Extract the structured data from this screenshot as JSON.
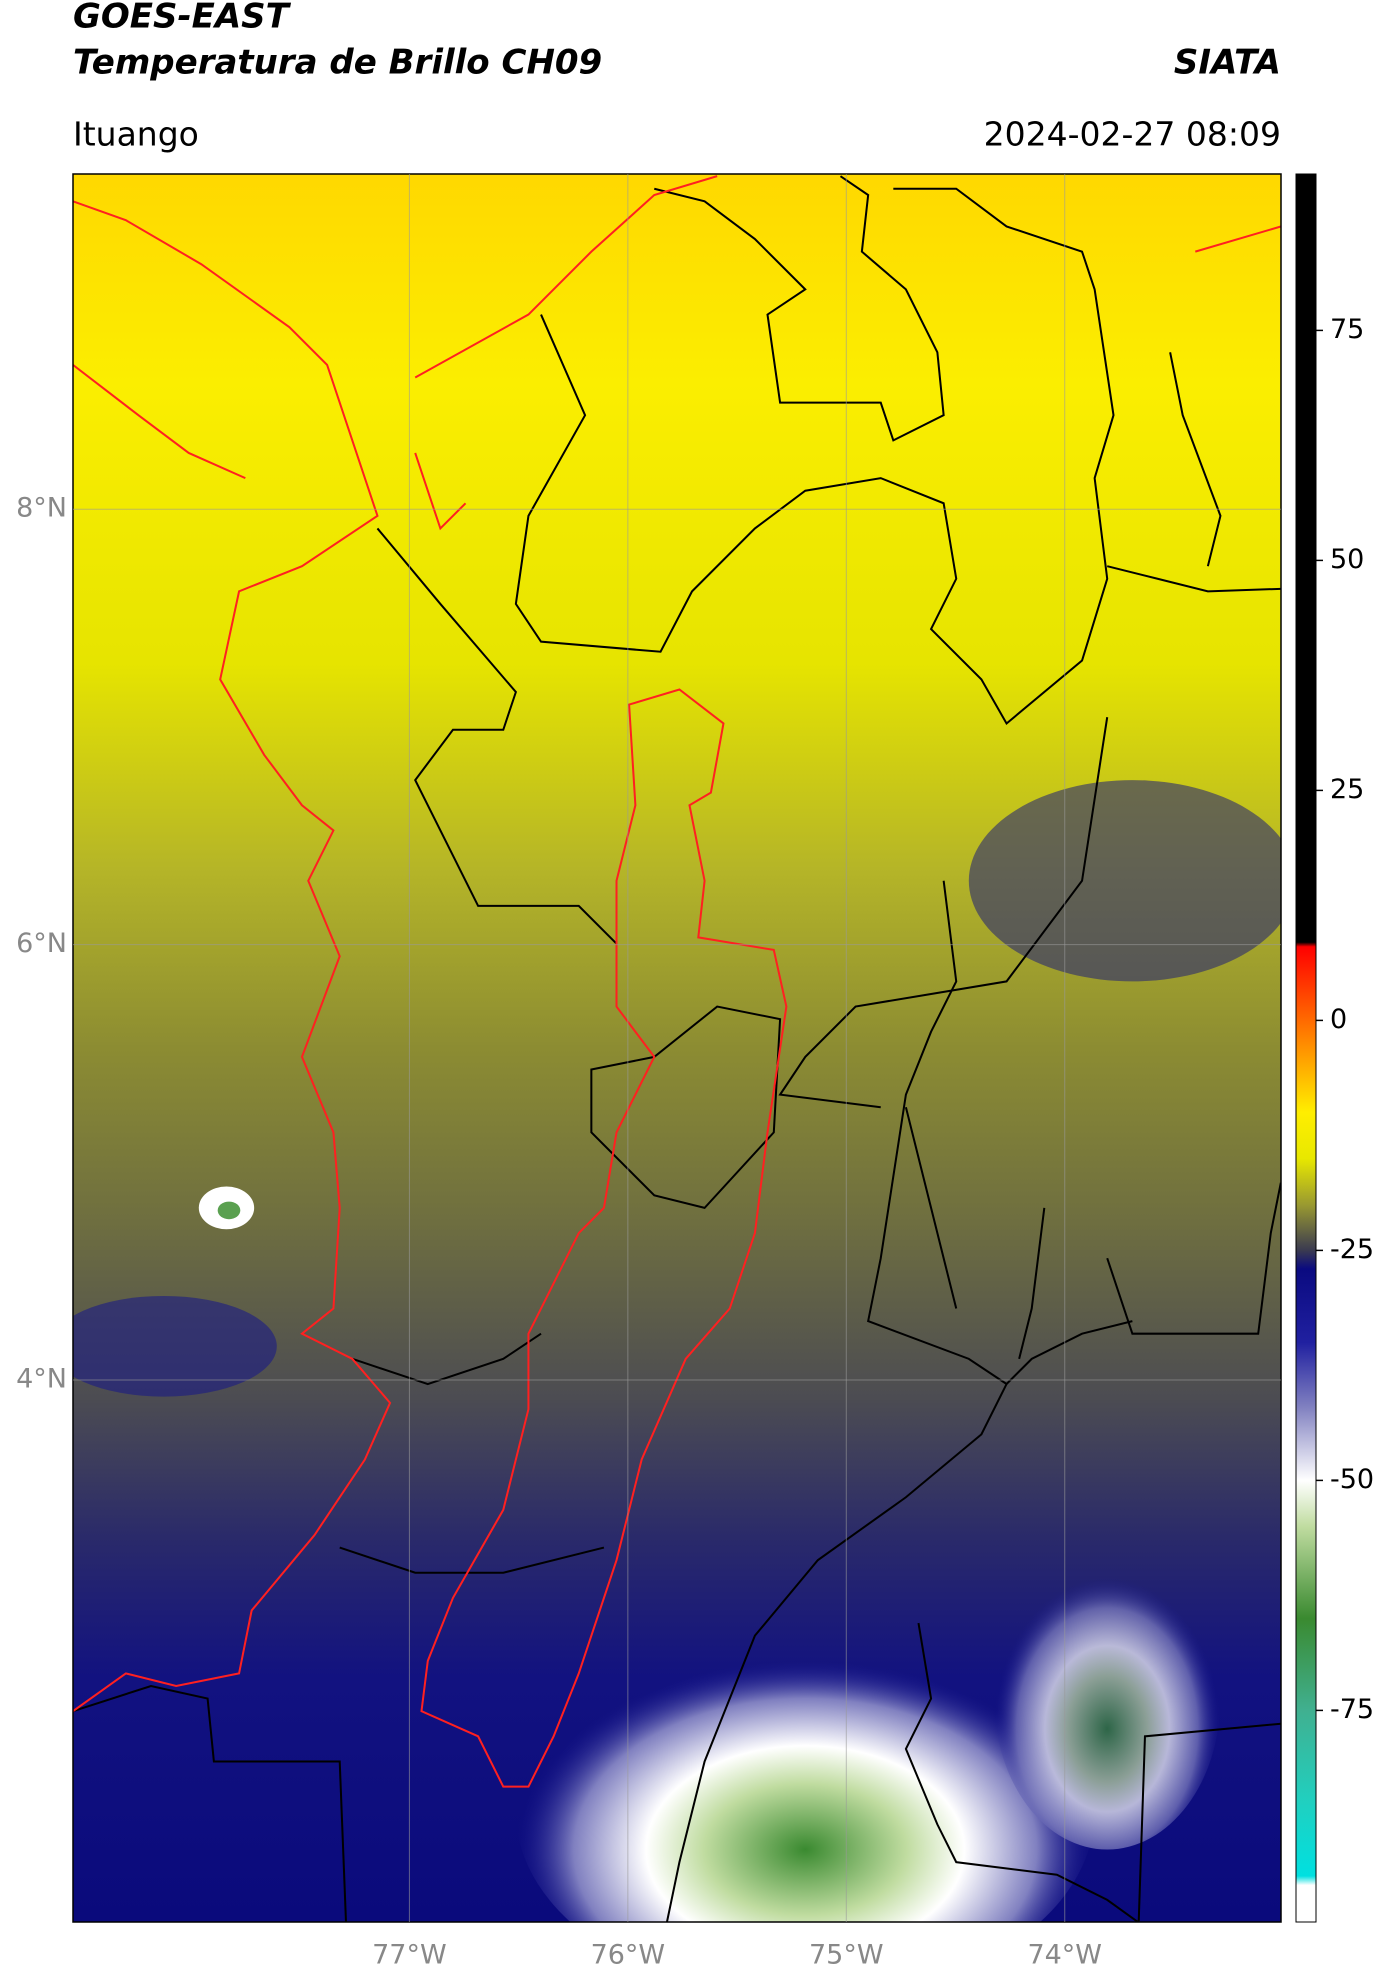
{
  "chart_data": {
    "type": "map",
    "title": "GOES-EAST",
    "subtitle": "Temperatura de Brillo CH09",
    "agency": "SIATA",
    "location": "Ituango",
    "datetime": "2024-02-27 08:09",
    "xlim": [
      -78.54,
      -73.01
    ],
    "ylim": [
      1.51,
      9.54
    ],
    "xticks": [
      {
        "value": -77,
        "label": "77°W"
      },
      {
        "value": -76,
        "label": "76°W"
      },
      {
        "value": -75,
        "label": "75°W"
      },
      {
        "value": -74,
        "label": "74°W"
      }
    ],
    "yticks": [
      {
        "value": 8,
        "label": "8°N"
      },
      {
        "value": 6,
        "label": "6°N"
      },
      {
        "value": 4,
        "label": "4°N"
      }
    ],
    "grid": true,
    "colorbar": {
      "lim": [
        -98,
        92
      ],
      "ticks": [
        75,
        50,
        25,
        0,
        -25,
        -50,
        -75
      ],
      "colormap": [
        {
          "value": 92,
          "color": "#000000"
        },
        {
          "value": 8.5,
          "color": "#000000"
        },
        {
          "value": 8,
          "color": "#ff0000"
        },
        {
          "value": 0,
          "color": "#ff6a00"
        },
        {
          "value": -10,
          "color": "#ffee00"
        },
        {
          "value": -15,
          "color": "#e8e800"
        },
        {
          "value": -20,
          "color": "#9a9a30"
        },
        {
          "value": -25,
          "color": "#3a3a50"
        },
        {
          "value": -27,
          "color": "#0a0a80"
        },
        {
          "value": -35,
          "color": "#2020a0"
        },
        {
          "value": -42,
          "color": "#8080c0"
        },
        {
          "value": -50,
          "color": "#ffffff"
        },
        {
          "value": -55,
          "color": "#c0dca0"
        },
        {
          "value": -65,
          "color": "#3a8a30"
        },
        {
          "value": -75,
          "color": "#40b090"
        },
        {
          "value": -85,
          "color": "#20d0c0"
        },
        {
          "value": -93,
          "color": "#00e0e0"
        },
        {
          "value": -94,
          "color": "#ffffff"
        },
        {
          "value": -98,
          "color": "#ffffff"
        }
      ]
    }
  }
}
